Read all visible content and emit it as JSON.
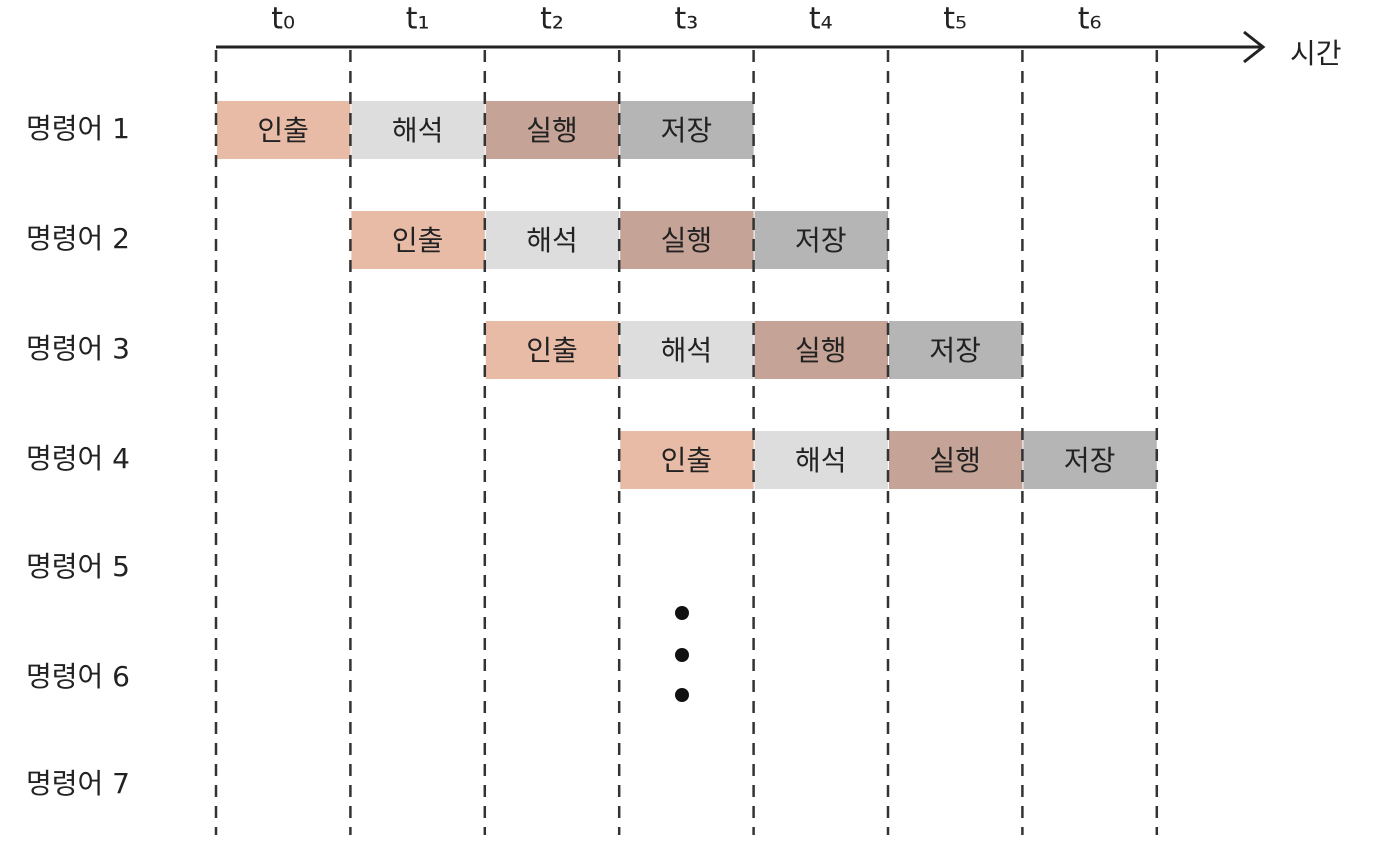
{
  "time_labels": [
    "t₀",
    "t₁",
    "t₂",
    "t₃",
    "t₄",
    "t₅",
    "t₆"
  ],
  "axis_label": "시간",
  "stage_colors": [
    "#e8bba6",
    "#dddddd",
    "#c5a396",
    "#b5b5b5"
  ],
  "rows": [
    {
      "label": "명령어 1",
      "slots": [
        "인출",
        "해석",
        "실행",
        "저장",
        null,
        null,
        null
      ]
    },
    {
      "label": "명령어 2",
      "slots": [
        null,
        "인출",
        "해석",
        "실행",
        "저장",
        null,
        null
      ]
    },
    {
      "label": "명령어 3",
      "slots": [
        null,
        null,
        "인출",
        "해석",
        "실행",
        "저장",
        null
      ]
    },
    {
      "label": "명령어 4",
      "slots": [
        null,
        null,
        null,
        "인출",
        "해석",
        "실행",
        "저장"
      ]
    },
    {
      "label": "명령어 5",
      "slots": [
        null,
        null,
        null,
        null,
        null,
        null,
        null
      ]
    },
    {
      "label": "명령어 6",
      "slots": [
        null,
        null,
        null,
        null,
        null,
        null,
        null
      ]
    },
    {
      "label": "명령어 7",
      "slots": [
        null,
        null,
        null,
        null,
        null,
        null,
        null
      ]
    }
  ]
}
